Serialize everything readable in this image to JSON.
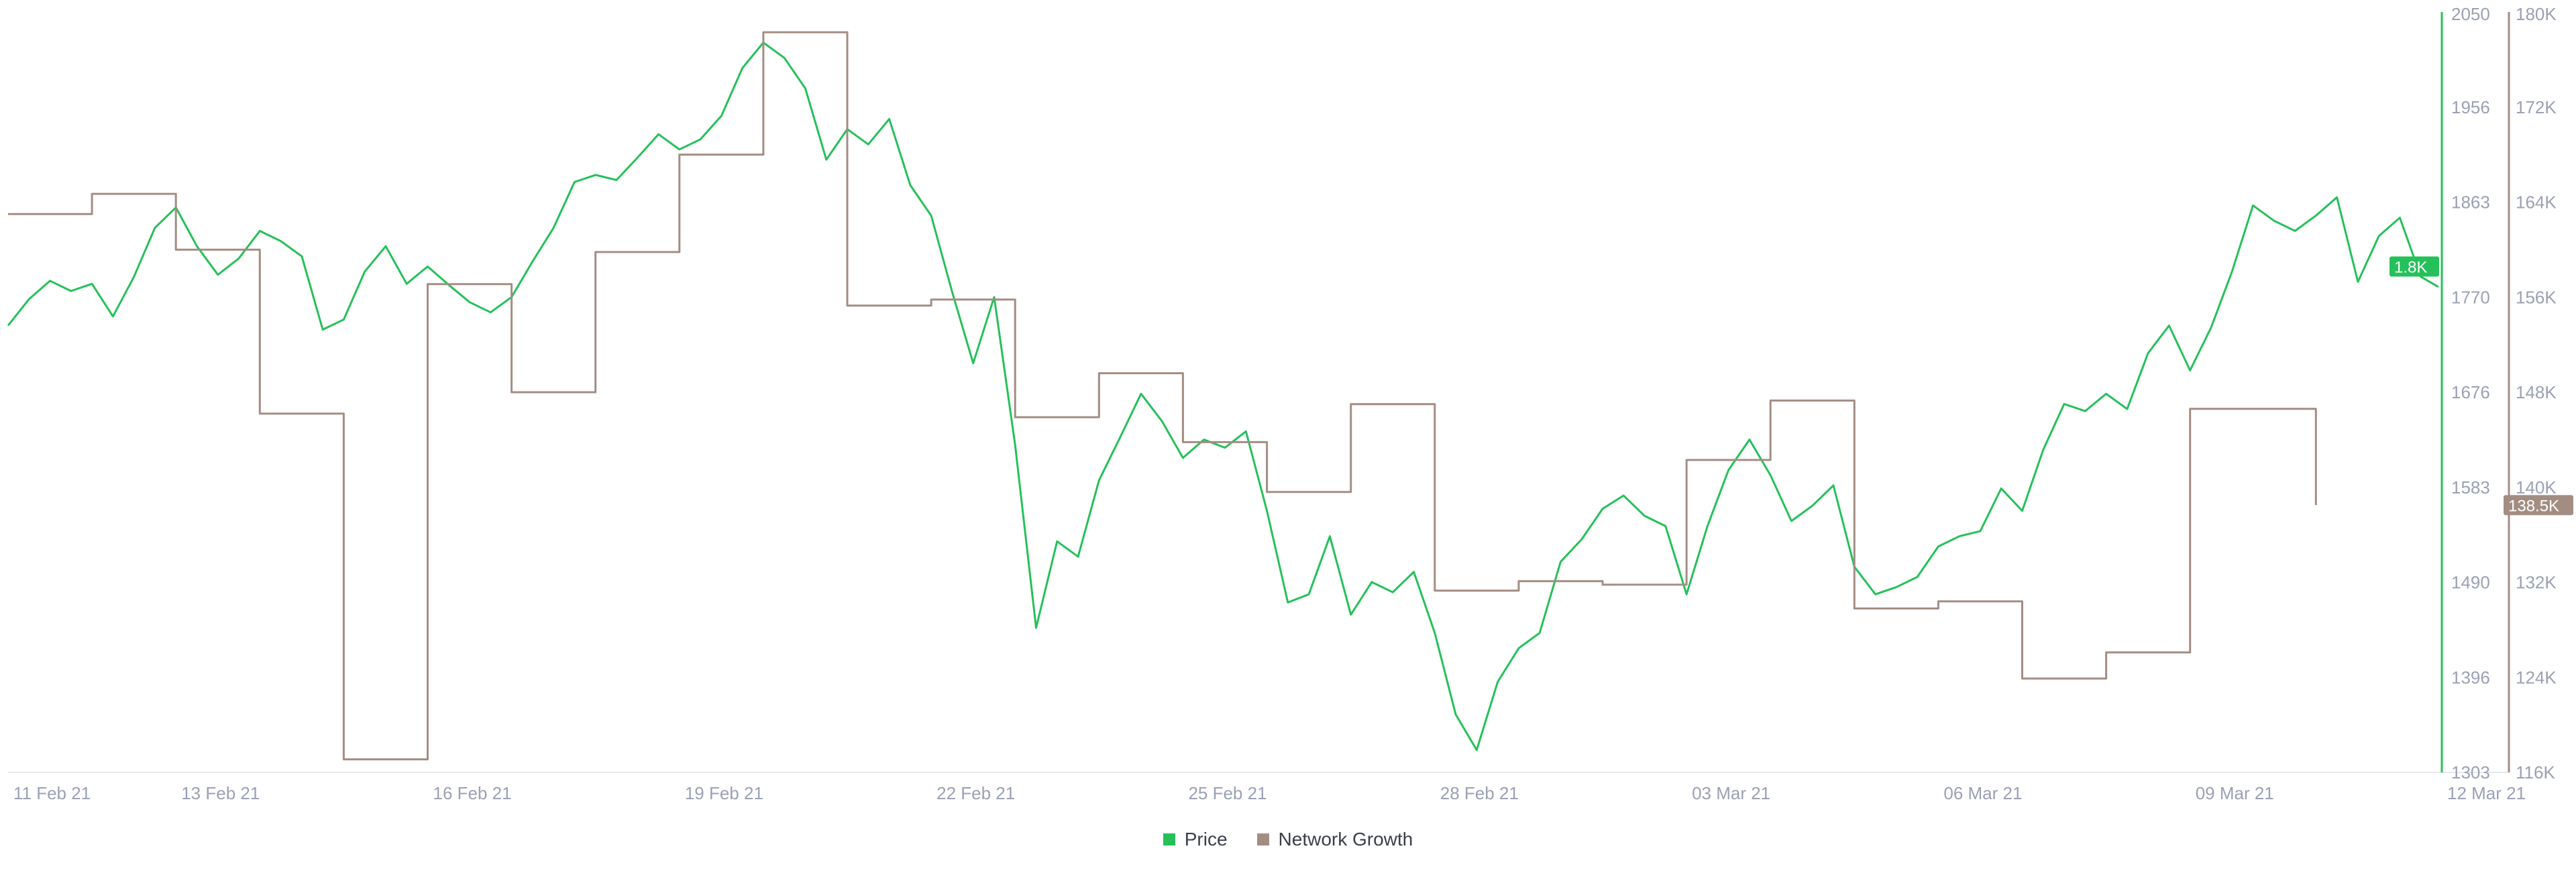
{
  "chart_data": {
    "type": "line",
    "title": "",
    "xlabel": "",
    "ylabel": "",
    "x_ticks": [
      "11 Feb 21",
      "13 Feb 21",
      "16 Feb 21",
      "19 Feb 21",
      "22 Feb 21",
      "25 Feb 21",
      "28 Feb 21",
      "03 Mar 21",
      "06 Mar 21",
      "09 Mar 21",
      "12 Mar 21"
    ],
    "x_range": [
      "2021-02-11",
      "2021-03-12"
    ],
    "legend_position": "bottom-center",
    "grid": false,
    "axes": {
      "price": {
        "ticks": [
          "1303",
          "1396",
          "1490",
          "1583",
          "1676",
          "1770",
          "1863",
          "1956",
          "2050"
        ],
        "range": [
          1303,
          2050
        ],
        "current_badge": "1.8K",
        "color": "#26c05a"
      },
      "network_growth": {
        "ticks": [
          "116K",
          "124K",
          "132K",
          "140K",
          "148K",
          "156K",
          "164K",
          "172K",
          "180K"
        ],
        "range": [
          116000,
          180000
        ],
        "current_badge": "138.5K",
        "color": "#a38d83"
      }
    },
    "series": [
      {
        "name": "Price",
        "color": "#26c05a",
        "points": [
          [
            "2021-02-11T00",
            1742
          ],
          [
            "2021-02-11T06",
            1768
          ],
          [
            "2021-02-11T12",
            1786
          ],
          [
            "2021-02-11T18",
            1776
          ],
          [
            "2021-02-12T00",
            1783
          ],
          [
            "2021-02-12T06",
            1751
          ],
          [
            "2021-02-12T12",
            1790
          ],
          [
            "2021-02-12T18",
            1838
          ],
          [
            "2021-02-13T00",
            1858
          ],
          [
            "2021-02-13T06",
            1820
          ],
          [
            "2021-02-13T12",
            1792
          ],
          [
            "2021-02-13T18",
            1808
          ],
          [
            "2021-02-14T00",
            1835
          ],
          [
            "2021-02-14T06",
            1825
          ],
          [
            "2021-02-14T12",
            1810
          ],
          [
            "2021-02-14T18",
            1738
          ],
          [
            "2021-02-15T00",
            1748
          ],
          [
            "2021-02-15T06",
            1795
          ],
          [
            "2021-02-15T12",
            1820
          ],
          [
            "2021-02-15T18",
            1783
          ],
          [
            "2021-02-16T00",
            1800
          ],
          [
            "2021-02-16T06",
            1782
          ],
          [
            "2021-02-16T12",
            1765
          ],
          [
            "2021-02-16T18",
            1755
          ],
          [
            "2021-02-17T00",
            1770
          ],
          [
            "2021-02-17T06",
            1805
          ],
          [
            "2021-02-17T12",
            1838
          ],
          [
            "2021-02-17T18",
            1883
          ],
          [
            "2021-02-18T00",
            1890
          ],
          [
            "2021-02-18T06",
            1885
          ],
          [
            "2021-02-18T12",
            1907
          ],
          [
            "2021-02-18T18",
            1930
          ],
          [
            "2021-02-19T00",
            1915
          ],
          [
            "2021-02-19T06",
            1925
          ],
          [
            "2021-02-19T12",
            1948
          ],
          [
            "2021-02-19T18",
            1995
          ],
          [
            "2021-02-20T00",
            2020
          ],
          [
            "2021-02-20T06",
            2005
          ],
          [
            "2021-02-20T12",
            1975
          ],
          [
            "2021-02-20T18",
            1905
          ],
          [
            "2021-02-21T00",
            1935
          ],
          [
            "2021-02-21T06",
            1920
          ],
          [
            "2021-02-21T12",
            1945
          ],
          [
            "2021-02-21T18",
            1880
          ],
          [
            "2021-02-22T00",
            1850
          ],
          [
            "2021-02-22T06",
            1775
          ],
          [
            "2021-02-22T12",
            1705
          ],
          [
            "2021-02-22T18",
            1770
          ],
          [
            "2021-02-23T00",
            1625
          ],
          [
            "2021-02-23T06",
            1445
          ],
          [
            "2021-02-23T12",
            1530
          ],
          [
            "2021-02-23T18",
            1515
          ],
          [
            "2021-02-24T00",
            1590
          ],
          [
            "2021-02-24T06",
            1632
          ],
          [
            "2021-02-24T12",
            1675
          ],
          [
            "2021-02-24T18",
            1648
          ],
          [
            "2021-02-25T00",
            1612
          ],
          [
            "2021-02-25T06",
            1630
          ],
          [
            "2021-02-25T12",
            1622
          ],
          [
            "2021-02-25T18",
            1638
          ],
          [
            "2021-02-26T00",
            1560
          ],
          [
            "2021-02-26T06",
            1470
          ],
          [
            "2021-02-26T12",
            1478
          ],
          [
            "2021-02-26T18",
            1535
          ],
          [
            "2021-02-27T00",
            1458
          ],
          [
            "2021-02-27T06",
            1490
          ],
          [
            "2021-02-27T12",
            1480
          ],
          [
            "2021-02-27T18",
            1500
          ],
          [
            "2021-02-28T00",
            1440
          ],
          [
            "2021-02-28T06",
            1360
          ],
          [
            "2021-02-28T12",
            1325
          ],
          [
            "2021-02-28T18",
            1392
          ],
          [
            "2021-03-01T00",
            1425
          ],
          [
            "2021-03-01T06",
            1440
          ],
          [
            "2021-03-01T12",
            1510
          ],
          [
            "2021-03-01T18",
            1532
          ],
          [
            "2021-03-02T00",
            1562
          ],
          [
            "2021-03-02T06",
            1575
          ],
          [
            "2021-03-02T12",
            1555
          ],
          [
            "2021-03-02T18",
            1545
          ],
          [
            "2021-03-03T00",
            1478
          ],
          [
            "2021-03-03T06",
            1545
          ],
          [
            "2021-03-03T12",
            1600
          ],
          [
            "2021-03-03T18",
            1630
          ],
          [
            "2021-03-04T00",
            1595
          ],
          [
            "2021-03-04T06",
            1550
          ],
          [
            "2021-03-04T12",
            1565
          ],
          [
            "2021-03-04T18",
            1585
          ],
          [
            "2021-03-05T00",
            1505
          ],
          [
            "2021-03-05T06",
            1478
          ],
          [
            "2021-03-05T12",
            1485
          ],
          [
            "2021-03-05T18",
            1495
          ],
          [
            "2021-03-06T00",
            1525
          ],
          [
            "2021-03-06T06",
            1535
          ],
          [
            "2021-03-06T12",
            1540
          ],
          [
            "2021-03-06T18",
            1582
          ],
          [
            "2021-03-07T00",
            1560
          ],
          [
            "2021-03-07T06",
            1620
          ],
          [
            "2021-03-07T12",
            1665
          ],
          [
            "2021-03-07T18",
            1658
          ],
          [
            "2021-03-08T00",
            1675
          ],
          [
            "2021-03-08T06",
            1660
          ],
          [
            "2021-03-08T12",
            1715
          ],
          [
            "2021-03-08T18",
            1742
          ],
          [
            "2021-03-09T00",
            1698
          ],
          [
            "2021-03-09T06",
            1740
          ],
          [
            "2021-03-09T12",
            1795
          ],
          [
            "2021-03-09T18",
            1860
          ],
          [
            "2021-03-10T00",
            1845
          ],
          [
            "2021-03-10T06",
            1835
          ],
          [
            "2021-03-10T12",
            1850
          ],
          [
            "2021-03-10T18",
            1868
          ],
          [
            "2021-03-11T00",
            1785
          ],
          [
            "2021-03-11T06",
            1830
          ],
          [
            "2021-03-11T12",
            1848
          ],
          [
            "2021-03-11T18",
            1790
          ],
          [
            "2021-03-11T23",
            1780
          ]
        ]
      },
      {
        "name": "Network Growth",
        "color": "#a38d83",
        "step": true,
        "points": [
          [
            "2021-02-11T00",
            163000
          ],
          [
            "2021-02-12T00",
            164700
          ],
          [
            "2021-02-13T00",
            160000
          ],
          [
            "2021-02-14T00",
            146200
          ],
          [
            "2021-02-15T00",
            117100
          ],
          [
            "2021-02-16T00",
            157100
          ],
          [
            "2021-02-17T00",
            148000
          ],
          [
            "2021-02-18T00",
            159800
          ],
          [
            "2021-02-19T00",
            168000
          ],
          [
            "2021-02-20T00",
            178300
          ],
          [
            "2021-02-21T00",
            155300
          ],
          [
            "2021-02-22T00",
            155800
          ],
          [
            "2021-02-23T00",
            145900
          ],
          [
            "2021-02-24T00",
            149600
          ],
          [
            "2021-02-25T00",
            143800
          ],
          [
            "2021-02-26T00",
            139600
          ],
          [
            "2021-02-27T00",
            147000
          ],
          [
            "2021-02-28T00",
            131300
          ],
          [
            "2021-03-01T00",
            132100
          ],
          [
            "2021-03-02T00",
            131800
          ],
          [
            "2021-03-03T00",
            142300
          ],
          [
            "2021-03-04T00",
            147300
          ],
          [
            "2021-03-05T00",
            129800
          ],
          [
            "2021-03-06T00",
            130400
          ],
          [
            "2021-03-07T00",
            123900
          ],
          [
            "2021-03-08T00",
            126100
          ],
          [
            "2021-03-09T00",
            146600
          ],
          [
            "2021-03-10T00",
            146600
          ],
          [
            "2021-03-10T12",
            138500
          ]
        ]
      }
    ]
  }
}
